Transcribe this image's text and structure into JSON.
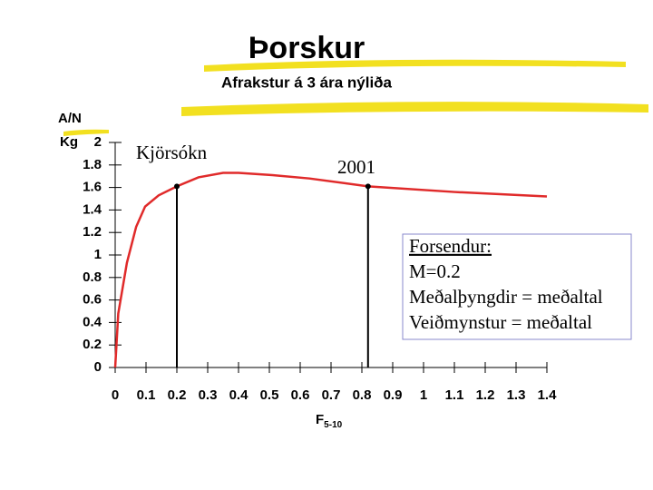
{
  "chart_data": {
    "type": "line",
    "title": "Þorskur",
    "subtitle": "Afrakstur á 3 ára nýliða",
    "ylabel": "A/N",
    "yunit": "Kg",
    "xlabel": "F",
    "xlabel_sub": "5-10",
    "x": [
      0,
      0.01,
      0.038,
      0.068,
      0.097,
      0.141,
      0.2,
      0.27,
      0.35,
      0.4,
      0.51,
      0.63,
      0.82,
      1.1,
      1.4
    ],
    "series": [
      {
        "color": "#e02a2a",
        "values": [
          0,
          0.48,
          0.93,
          1.25,
          1.43,
          1.53,
          1.61,
          1.69,
          1.73,
          1.73,
          1.71,
          1.68,
          1.61,
          1.56,
          1.52
        ]
      }
    ],
    "markers": [
      {
        "label": "Kjörsókn",
        "x": 0.2,
        "y": 1.61
      },
      {
        "label": "2001",
        "x": 0.82,
        "y": 1.61
      }
    ],
    "notes": [
      "Forsendur:",
      "M=0.2",
      "Meðalþyngdir = meðaltal",
      "Veiðmynstur = meðaltal"
    ],
    "xlim": [
      0,
      1.4
    ],
    "xticks": [
      0,
      0.1,
      0.2,
      0.3,
      0.4,
      0.5,
      0.6,
      0.7,
      0.8,
      0.9,
      1,
      1.1,
      1.2,
      1.3,
      1.4
    ],
    "ylim": [
      0,
      2
    ],
    "yticks": [
      0,
      0.2,
      0.4,
      0.6,
      0.8,
      1,
      1.2,
      1.4,
      1.6,
      1.8,
      2
    ]
  }
}
